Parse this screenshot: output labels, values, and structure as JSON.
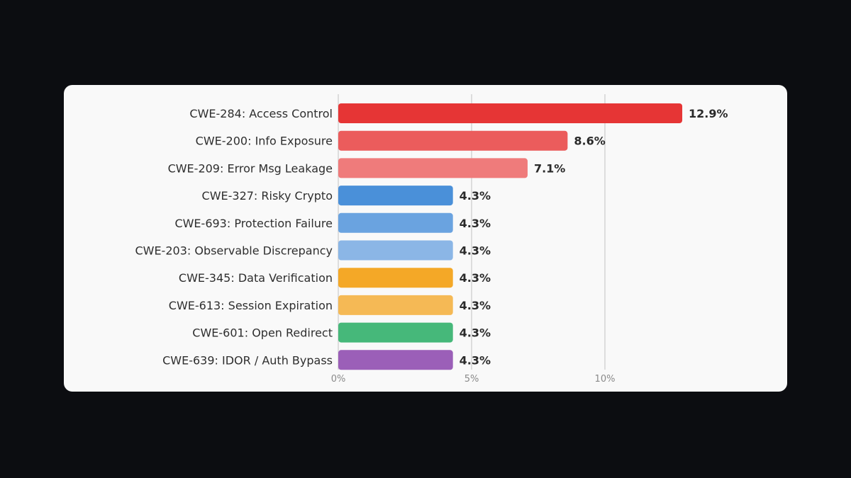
{
  "chart_data": {
    "type": "bar",
    "orientation": "horizontal",
    "categories": [
      "CWE-284: Access Control",
      "CWE-200: Info Exposure",
      "CWE-209: Error Msg Leakage",
      "CWE-327: Risky Crypto",
      "CWE-693: Protection Failure",
      "CWE-203: Observable Discrepancy",
      "CWE-345: Data Verification",
      "CWE-613: Session Expiration",
      "CWE-601: Open Redirect",
      "CWE-639: IDOR / Auth Bypass"
    ],
    "values": [
      12.9,
      8.6,
      7.1,
      4.3,
      4.3,
      4.3,
      4.3,
      4.3,
      4.3,
      4.3
    ],
    "value_labels": [
      "12.9%",
      "8.6%",
      "7.1%",
      "4.3%",
      "4.3%",
      "4.3%",
      "4.3%",
      "4.3%",
      "4.3%",
      "4.3%"
    ],
    "colors": [
      "#e63535",
      "#eb5c5c",
      "#ef7b7b",
      "#4a90d9",
      "#6aa3e0",
      "#8bb6e6",
      "#f4a827",
      "#f5b955",
      "#46b87a",
      "#9b5fb8"
    ],
    "xticks": [
      0,
      5,
      10
    ],
    "xtick_labels": [
      "0%",
      "5%",
      "10%"
    ],
    "xlim": [
      0,
      16
    ],
    "grid": true,
    "title": "",
    "xlabel": "",
    "ylabel": ""
  }
}
